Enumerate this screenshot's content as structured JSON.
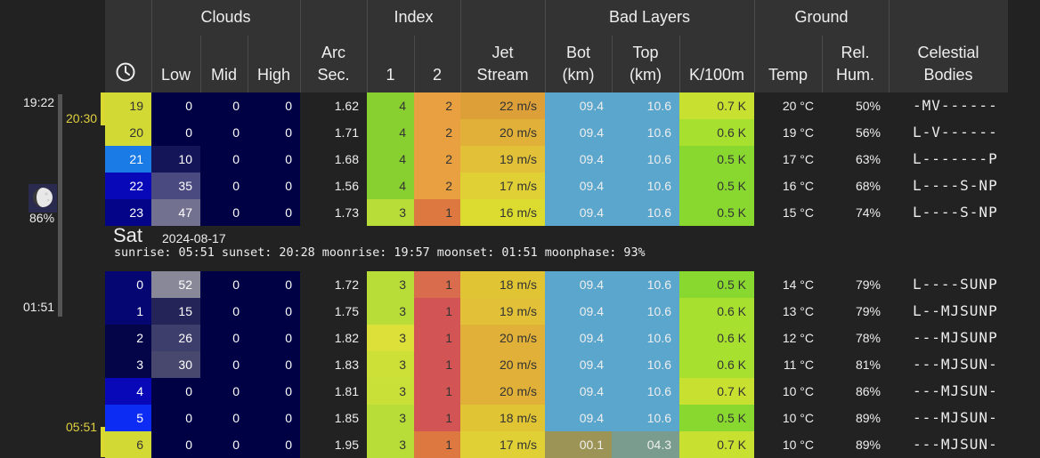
{
  "header": {
    "clouds": "Clouds",
    "index": "Index",
    "bad_layers": "Bad Layers",
    "ground": "Ground",
    "low": "Low",
    "mid": "Mid",
    "high": "High",
    "arc_sec_1": "Arc",
    "arc_sec_2": "Sec.",
    "index_1": "1",
    "index_2": "2",
    "jet_1": "Jet",
    "jet_2": "Stream",
    "bot_1": "Bot",
    "bot_2": "(km)",
    "top_1": "Top",
    "top_2": "(km)",
    "k100m": "K/100m",
    "temp": "Temp",
    "relhum_1": "Rel.",
    "relhum_2": "Hum.",
    "celestial_1": "Celestial",
    "celestial_2": "Bodies",
    "clock_icon": "clock-icon"
  },
  "sidebar": {
    "time_1922": "19:22",
    "time_2030": "20:30",
    "time_0151": "01:51",
    "time_0551": "05:51",
    "moon_icon": "moon-phase-icon",
    "moon_pct": "86%"
  },
  "day2": {
    "name": "Sat",
    "date": "2024-08-17",
    "sun_line": "sunrise: 05:51 sunset: 20:28 moonrise: 19:57 moonset: 01:51 moonphase: 93%"
  },
  "block1": [
    {
      "hour": "19",
      "low": "0",
      "mid": "0",
      "high": "0",
      "arc": "1.62",
      "i1": "4",
      "i2": "2",
      "jet": "22 m/s",
      "bot": "09.4",
      "top": "10.6",
      "k": "0.7 K",
      "temp": "20 °C",
      "hum": "50%",
      "cel": "-MV------",
      "bg": {
        "hour": "#d2d834",
        "low": "#000044",
        "i1": "#88d030",
        "i2": "#e8a040",
        "jet": "#dda038",
        "bot": "#5aa6cc",
        "top": "#5aa6cc",
        "k": "#c8e030"
      }
    },
    {
      "hour": "20",
      "low": "0",
      "mid": "0",
      "high": "0",
      "arc": "1.71",
      "i1": "4",
      "i2": "2",
      "jet": "20 m/s",
      "bot": "09.4",
      "top": "10.6",
      "k": "0.6 K",
      "temp": "19 °C",
      "hum": "56%",
      "cel": "L-V------",
      "bg": {
        "hour": "#d2d834",
        "low": "#000044",
        "i1": "#88d030",
        "i2": "#e8a040",
        "jet": "#e0b038",
        "bot": "#5aa6cc",
        "top": "#5aa6cc",
        "k": "#a8e030"
      }
    },
    {
      "hour": "21",
      "low": "10",
      "mid": "0",
      "high": "0",
      "arc": "1.68",
      "i1": "4",
      "i2": "2",
      "jet": "19 m/s",
      "bot": "09.4",
      "top": "10.6",
      "k": "0.5 K",
      "temp": "17 °C",
      "hum": "63%",
      "cel": "L-------P",
      "bg": {
        "hour": "#1a7ae6",
        "low": "#141458",
        "i1": "#88d030",
        "i2": "#e8a040",
        "jet": "#e2c038",
        "bot": "#5aa6cc",
        "top": "#5aa6cc",
        "k": "#88d830"
      }
    },
    {
      "hour": "22",
      "low": "35",
      "mid": "0",
      "high": "0",
      "arc": "1.56",
      "i1": "4",
      "i2": "2",
      "jet": "17 m/s",
      "bot": "09.4",
      "top": "10.6",
      "k": "0.5 K",
      "temp": "16 °C",
      "hum": "68%",
      "cel": "L----S-NP",
      "bg": {
        "hour": "#0808b8",
        "low": "#4a4a80",
        "i1": "#88d030",
        "i2": "#e8a040",
        "jet": "#e0d036",
        "bot": "#5aa6cc",
        "top": "#5aa6cc",
        "k": "#88d830"
      }
    },
    {
      "hour": "23",
      "low": "47",
      "mid": "0",
      "high": "0",
      "arc": "1.73",
      "i1": "3",
      "i2": "1",
      "jet": "16 m/s",
      "bot": "09.4",
      "top": "10.6",
      "k": "0.5 K",
      "temp": "15 °C",
      "hum": "74%",
      "cel": "L----S-NP",
      "bg": {
        "hour": "#040488",
        "low": "#727290",
        "i1": "#b8dc38",
        "i2": "#dc7840",
        "jet": "#dcdc30",
        "bot": "#5aa6cc",
        "top": "#5aa6cc",
        "k": "#88d830"
      }
    }
  ],
  "block2": [
    {
      "hour": "0",
      "low": "52",
      "mid": "0",
      "high": "0",
      "arc": "1.72",
      "i1": "3",
      "i2": "1",
      "jet": "18 m/s",
      "bot": "09.4",
      "top": "10.6",
      "k": "0.5 K",
      "temp": "14 °C",
      "hum": "79%",
      "cel": "L----SUNP",
      "bg": {
        "hour": "#060672",
        "low": "#888898",
        "i1": "#b8dc38",
        "i2": "#d86c4c",
        "jet": "#e0c434",
        "bot": "#5aa6cc",
        "top": "#5aa6cc",
        "k": "#88d830"
      }
    },
    {
      "hour": "1",
      "low": "15",
      "mid": "0",
      "high": "0",
      "arc": "1.75",
      "i1": "3",
      "i2": "1",
      "jet": "19 m/s",
      "bot": "09.4",
      "top": "10.6",
      "k": "0.6 K",
      "temp": "13 °C",
      "hum": "79%",
      "cel": "L--MJSUNP",
      "bg": {
        "hour": "#060672",
        "low": "#242458",
        "i1": "#b8dc38",
        "i2": "#d25454",
        "jet": "#e2c038",
        "bot": "#5aa6cc",
        "top": "#5aa6cc",
        "k": "#a8e030"
      }
    },
    {
      "hour": "2",
      "low": "26",
      "mid": "0",
      "high": "0",
      "arc": "1.82",
      "i1": "3",
      "i2": "1",
      "jet": "20 m/s",
      "bot": "09.4",
      "top": "10.6",
      "k": "0.6 K",
      "temp": "12 °C",
      "hum": "78%",
      "cel": "---MJSUNP",
      "bg": {
        "hour": "#040448",
        "low": "#3e3e6c",
        "i1": "#dce038",
        "i2": "#d25454",
        "jet": "#e0b038",
        "bot": "#5aa6cc",
        "top": "#5aa6cc",
        "k": "#a8e030"
      }
    },
    {
      "hour": "3",
      "low": "30",
      "mid": "0",
      "high": "0",
      "arc": "1.83",
      "i1": "3",
      "i2": "1",
      "jet": "20 m/s",
      "bot": "09.4",
      "top": "10.6",
      "k": "0.6 K",
      "temp": "11 °C",
      "hum": "81%",
      "cel": "---MJSUN-",
      "bg": {
        "hour": "#040448",
        "low": "#48486e",
        "i1": "#cce038",
        "i2": "#d25454",
        "jet": "#e0b038",
        "bot": "#5aa6cc",
        "top": "#5aa6cc",
        "k": "#a8e030"
      }
    },
    {
      "hour": "4",
      "low": "0",
      "mid": "0",
      "high": "0",
      "arc": "1.81",
      "i1": "3",
      "i2": "1",
      "jet": "20 m/s",
      "bot": "09.4",
      "top": "10.6",
      "k": "0.7 K",
      "temp": "10 °C",
      "hum": "86%",
      "cel": "---MJSUN-",
      "bg": {
        "hour": "#0808b8",
        "low": "#000044",
        "i1": "#c8e038",
        "i2": "#d25454",
        "jet": "#e0b038",
        "bot": "#5aa6cc",
        "top": "#5aa6cc",
        "k": "#c8e030"
      }
    },
    {
      "hour": "5",
      "low": "0",
      "mid": "0",
      "high": "0",
      "arc": "1.85",
      "i1": "3",
      "i2": "1",
      "jet": "18 m/s",
      "bot": "09.4",
      "top": "10.6",
      "k": "0.5 K",
      "temp": "10 °C",
      "hum": "89%",
      "cel": "---MJSUN-",
      "bg": {
        "hour": "#0c2cf4",
        "low": "#000044",
        "i1": "#b8dc38",
        "i2": "#d25454",
        "jet": "#e0c434",
        "bot": "#5aa6cc",
        "top": "#5aa6cc",
        "k": "#88d830"
      }
    },
    {
      "hour": "6",
      "low": "0",
      "mid": "0",
      "high": "0",
      "arc": "1.95",
      "i1": "3",
      "i2": "1",
      "jet": "17 m/s",
      "bot": "00.1",
      "top": "04.3",
      "k": "0.7 K",
      "temp": "10 °C",
      "hum": "89%",
      "cel": "---MJSUN-",
      "bg": {
        "hour": "#d2d834",
        "low": "#000044",
        "i1": "#b8dc38",
        "i2": "#dc7840",
        "jet": "#e0d036",
        "bot": "#9c9456",
        "top": "#7a9c8e",
        "k": "#c8e030"
      }
    }
  ],
  "colors": {
    "page_bg": "#222222",
    "header_bg": "#333333",
    "cloud_dark": "#000044",
    "text": "#eeeeee",
    "sidebar_time_yellow": "#e0d040"
  }
}
